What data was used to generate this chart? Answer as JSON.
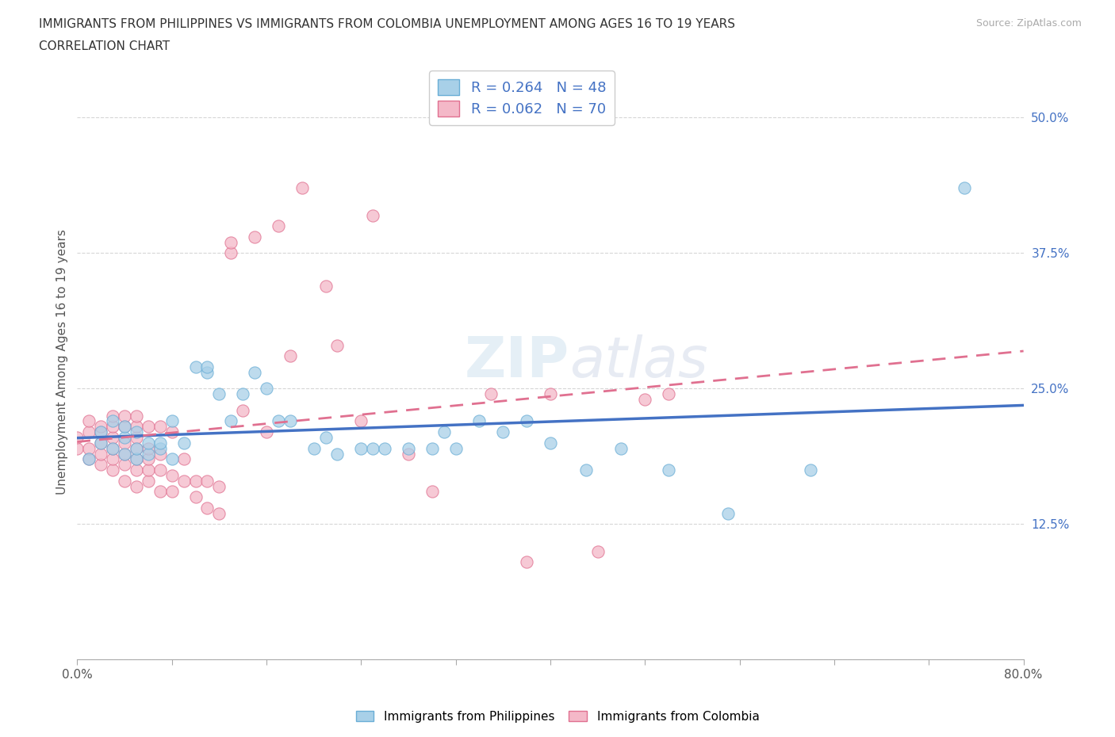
{
  "title_line1": "IMMIGRANTS FROM PHILIPPINES VS IMMIGRANTS FROM COLOMBIA UNEMPLOYMENT AMONG AGES 16 TO 19 YEARS",
  "title_line2": "CORRELATION CHART",
  "source_text": "Source: ZipAtlas.com",
  "ylabel": "Unemployment Among Ages 16 to 19 years",
  "xlim": [
    0.0,
    0.8
  ],
  "ylim": [
    0.0,
    0.55
  ],
  "xticks": [
    0.0,
    0.08,
    0.16,
    0.24,
    0.32,
    0.4,
    0.48,
    0.56,
    0.64,
    0.72,
    0.8
  ],
  "xticklabels": [
    "0.0%",
    "",
    "",
    "",
    "",
    "",
    "",
    "",
    "",
    "",
    "80.0%"
  ],
  "yticks": [
    0.0,
    0.125,
    0.25,
    0.375,
    0.5
  ],
  "yticklabels": [
    "",
    "12.5%",
    "25.0%",
    "37.5%",
    "50.0%"
  ],
  "philippines_color": "#a8d0e8",
  "colombia_color": "#f4b8c8",
  "philippines_edge": "#6aaed6",
  "colombia_edge": "#e07090",
  "regression_philippines_color": "#4472c4",
  "regression_colombia_color": "#e07090",
  "R_philippines": 0.264,
  "N_philippines": 48,
  "R_colombia": 0.062,
  "N_colombia": 70,
  "watermark": "ZIPatlas",
  "grid_color": "#cccccc",
  "background_color": "#ffffff",
  "philippines_x": [
    0.01,
    0.02,
    0.02,
    0.03,
    0.03,
    0.04,
    0.04,
    0.04,
    0.05,
    0.05,
    0.05,
    0.06,
    0.06,
    0.07,
    0.07,
    0.08,
    0.08,
    0.09,
    0.1,
    0.11,
    0.11,
    0.12,
    0.13,
    0.14,
    0.15,
    0.16,
    0.17,
    0.18,
    0.2,
    0.21,
    0.22,
    0.24,
    0.25,
    0.26,
    0.28,
    0.3,
    0.31,
    0.32,
    0.34,
    0.36,
    0.38,
    0.4,
    0.43,
    0.46,
    0.5,
    0.55,
    0.62,
    0.75
  ],
  "philippines_y": [
    0.185,
    0.2,
    0.21,
    0.195,
    0.22,
    0.19,
    0.205,
    0.215,
    0.185,
    0.195,
    0.21,
    0.19,
    0.2,
    0.195,
    0.2,
    0.185,
    0.22,
    0.2,
    0.27,
    0.265,
    0.27,
    0.245,
    0.22,
    0.245,
    0.265,
    0.25,
    0.22,
    0.22,
    0.195,
    0.205,
    0.19,
    0.195,
    0.195,
    0.195,
    0.195,
    0.195,
    0.21,
    0.195,
    0.22,
    0.21,
    0.22,
    0.2,
    0.175,
    0.195,
    0.175,
    0.135,
    0.175,
    0.435
  ],
  "colombia_x": [
    0.0,
    0.0,
    0.01,
    0.01,
    0.01,
    0.01,
    0.02,
    0.02,
    0.02,
    0.02,
    0.02,
    0.03,
    0.03,
    0.03,
    0.03,
    0.03,
    0.03,
    0.04,
    0.04,
    0.04,
    0.04,
    0.04,
    0.04,
    0.05,
    0.05,
    0.05,
    0.05,
    0.05,
    0.05,
    0.05,
    0.06,
    0.06,
    0.06,
    0.06,
    0.06,
    0.07,
    0.07,
    0.07,
    0.07,
    0.08,
    0.08,
    0.08,
    0.09,
    0.09,
    0.1,
    0.1,
    0.11,
    0.11,
    0.12,
    0.12,
    0.13,
    0.13,
    0.14,
    0.15,
    0.16,
    0.17,
    0.18,
    0.19,
    0.21,
    0.22,
    0.24,
    0.25,
    0.28,
    0.3,
    0.35,
    0.38,
    0.4,
    0.44,
    0.48,
    0.5
  ],
  "colombia_y": [
    0.195,
    0.205,
    0.185,
    0.195,
    0.21,
    0.22,
    0.18,
    0.19,
    0.2,
    0.21,
    0.215,
    0.175,
    0.185,
    0.195,
    0.205,
    0.215,
    0.225,
    0.165,
    0.18,
    0.19,
    0.2,
    0.215,
    0.225,
    0.16,
    0.175,
    0.185,
    0.195,
    0.205,
    0.215,
    0.225,
    0.165,
    0.175,
    0.185,
    0.195,
    0.215,
    0.155,
    0.175,
    0.19,
    0.215,
    0.155,
    0.17,
    0.21,
    0.165,
    0.185,
    0.15,
    0.165,
    0.14,
    0.165,
    0.135,
    0.16,
    0.375,
    0.385,
    0.23,
    0.39,
    0.21,
    0.4,
    0.28,
    0.435,
    0.345,
    0.29,
    0.22,
    0.41,
    0.19,
    0.155,
    0.245,
    0.09,
    0.245,
    0.1,
    0.24,
    0.245
  ]
}
